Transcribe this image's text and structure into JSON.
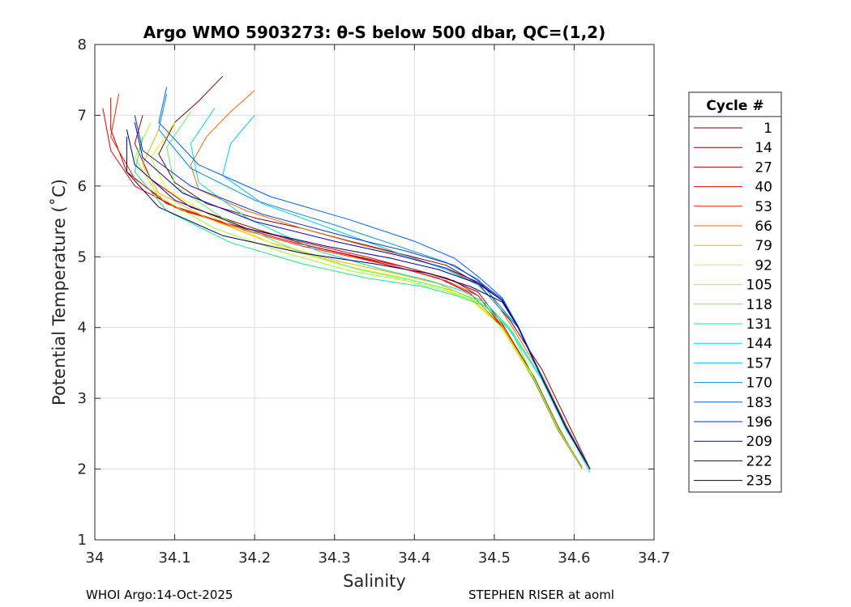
{
  "chart_data": {
    "type": "line",
    "title": "Argo WMO 5903273: θ-S below 500 dbar,  QC=(1,2)",
    "xlabel": "Salinity",
    "ylabel": "Potential Temperature (˚C)",
    "xlim": [
      34,
      34.7
    ],
    "ylim": [
      1,
      8
    ],
    "xticks": [
      34,
      34.1,
      34.2,
      34.3,
      34.4,
      34.5,
      34.6,
      34.7
    ],
    "xtick_labels": [
      "34",
      "34.1",
      "34.2",
      "34.3",
      "34.4",
      "34.5",
      "34.6",
      "34.7"
    ],
    "yticks": [
      1,
      2,
      3,
      4,
      5,
      6,
      7,
      8
    ],
    "ytick_labels": [
      "1",
      "2",
      "3",
      "4",
      "5",
      "6",
      "7",
      "8"
    ],
    "grid": true,
    "legend": {
      "title": "Cycle #",
      "position": "right",
      "entries": [
        {
          "label": "1",
          "color": "#800000"
        },
        {
          "label": "14",
          "color": "#a00000"
        },
        {
          "label": "27",
          "color": "#c80000"
        },
        {
          "label": "40",
          "color": "#e60000"
        },
        {
          "label": "53",
          "color": "#ff2200"
        },
        {
          "label": "66",
          "color": "#ff6600"
        },
        {
          "label": "79",
          "color": "#ffb000"
        },
        {
          "label": "92",
          "color": "#f0f000"
        },
        {
          "label": "105",
          "color": "#a0ff20"
        },
        {
          "label": "118",
          "color": "#50ff50"
        },
        {
          "label": "131",
          "color": "#10f080"
        },
        {
          "label": "144",
          "color": "#00e0c0"
        },
        {
          "label": "157",
          "color": "#00c8ff"
        },
        {
          "label": "170",
          "color": "#0090e0"
        },
        {
          "label": "183",
          "color": "#0060ff"
        },
        {
          "label": "196",
          "color": "#0030d0"
        },
        {
          "label": "209",
          "color": "#0000c0"
        },
        {
          "label": "222",
          "color": "#000090"
        },
        {
          "label": "235",
          "color": "#000060"
        }
      ]
    },
    "series": [
      {
        "name": "1",
        "color": "#800000",
        "x": [
          34.16,
          34.13,
          34.1,
          34.08,
          34.1,
          34.14,
          34.2,
          34.26,
          34.32,
          34.38,
          34.44,
          34.48,
          34.52,
          34.56,
          34.59,
          34.62
        ],
        "y": [
          7.55,
          7.2,
          6.9,
          6.45,
          6.05,
          5.75,
          5.55,
          5.4,
          5.22,
          5.05,
          4.88,
          4.62,
          4.1,
          3.4,
          2.7,
          2.0
        ]
      },
      {
        "name": "14",
        "color": "#a00000",
        "x": [
          34.06,
          34.05,
          34.07,
          34.12,
          34.2,
          34.27,
          34.33,
          34.39,
          34.44,
          34.48,
          34.51,
          34.55,
          34.58,
          34.61
        ],
        "y": [
          7.0,
          6.6,
          6.1,
          5.7,
          5.4,
          5.15,
          5.0,
          4.85,
          4.7,
          4.5,
          4.05,
          3.3,
          2.6,
          2.0
        ]
      },
      {
        "name": "27",
        "color": "#c80000",
        "x": [
          34.02,
          34.02,
          34.04,
          34.09,
          34.17,
          34.25,
          34.32,
          34.38,
          34.43,
          34.47,
          34.51,
          34.55,
          34.58,
          34.61
        ],
        "y": [
          7.25,
          6.8,
          6.2,
          5.75,
          5.45,
          5.2,
          5.02,
          4.85,
          4.7,
          4.48,
          4.0,
          3.25,
          2.55,
          2.0
        ]
      },
      {
        "name": "40",
        "color": "#e60000",
        "x": [
          34.01,
          34.02,
          34.05,
          34.11,
          34.19,
          34.27,
          34.34,
          34.4,
          34.45,
          34.48,
          34.51,
          34.55,
          34.58,
          34.61
        ],
        "y": [
          7.1,
          6.5,
          6.0,
          5.65,
          5.4,
          5.18,
          5.0,
          4.82,
          4.66,
          4.45,
          4.0,
          3.25,
          2.55,
          2.0
        ]
      },
      {
        "name": "53",
        "color": "#ff2200",
        "x": [
          34.03,
          34.02,
          34.05,
          34.1,
          34.18,
          34.26,
          34.33,
          34.39,
          34.44,
          34.48,
          34.51,
          34.55,
          34.58,
          34.61
        ],
        "y": [
          7.3,
          6.7,
          6.1,
          5.7,
          5.4,
          5.15,
          4.98,
          4.82,
          4.66,
          4.45,
          4.02,
          3.28,
          2.58,
          2.02
        ]
      },
      {
        "name": "66",
        "color": "#ff6600",
        "x": [
          34.2,
          34.17,
          34.14,
          34.12,
          34.13,
          34.19,
          34.26,
          34.33,
          34.4,
          34.45,
          34.49,
          34.52,
          34.56,
          34.59,
          34.62
        ],
        "y": [
          7.35,
          7.05,
          6.7,
          6.3,
          5.95,
          5.65,
          5.4,
          5.18,
          4.98,
          4.78,
          4.55,
          4.05,
          3.32,
          2.62,
          2.0
        ]
      },
      {
        "name": "79",
        "color": "#ffb000",
        "x": [
          34.08,
          34.06,
          34.08,
          34.14,
          34.22,
          34.3,
          34.37,
          34.43,
          34.47,
          34.51,
          34.55,
          34.58,
          34.61
        ],
        "y": [
          6.8,
          6.3,
          5.9,
          5.55,
          5.2,
          4.95,
          4.78,
          4.62,
          4.42,
          4.0,
          3.28,
          2.58,
          2.0
        ]
      },
      {
        "name": "92",
        "color": "#f0f000",
        "x": [
          34.1,
          34.07,
          34.09,
          34.15,
          34.23,
          34.31,
          34.38,
          34.43,
          34.47,
          34.51,
          34.55,
          34.58,
          34.61
        ],
        "y": [
          6.9,
          6.4,
          5.95,
          5.55,
          5.15,
          4.88,
          4.72,
          4.58,
          4.4,
          4.0,
          3.28,
          2.58,
          2.0
        ]
      },
      {
        "name": "105",
        "color": "#a0ff20",
        "x": [
          34.07,
          34.05,
          34.08,
          34.15,
          34.24,
          34.32,
          34.39,
          34.44,
          34.48,
          34.51,
          34.55,
          34.58,
          34.61
        ],
        "y": [
          6.9,
          6.4,
          5.85,
          5.4,
          5.05,
          4.8,
          4.66,
          4.52,
          4.36,
          3.98,
          3.26,
          2.56,
          2.0
        ]
      },
      {
        "name": "118",
        "color": "#50ff50",
        "x": [
          34.12,
          34.09,
          34.1,
          34.16,
          34.25,
          34.33,
          34.4,
          34.45,
          34.48,
          34.52,
          34.55,
          34.58,
          34.61
        ],
        "y": [
          7.05,
          6.55,
          6.0,
          5.55,
          5.1,
          4.82,
          4.66,
          4.52,
          4.38,
          3.98,
          3.28,
          2.58,
          2.0
        ]
      },
      {
        "name": "131",
        "color": "#10f080",
        "x": [
          34.06,
          34.05,
          34.09,
          34.17,
          34.26,
          34.34,
          34.41,
          34.45,
          34.49,
          34.52,
          34.56,
          34.59,
          34.62
        ],
        "y": [
          6.7,
          6.2,
          5.65,
          5.2,
          4.9,
          4.7,
          4.58,
          4.46,
          4.3,
          3.95,
          3.25,
          2.55,
          2.0
        ]
      },
      {
        "name": "144",
        "color": "#00e0c0",
        "x": [
          34.15,
          34.12,
          34.13,
          34.19,
          34.28,
          34.36,
          34.42,
          34.46,
          34.49,
          34.52,
          34.56,
          34.59,
          34.62
        ],
        "y": [
          7.1,
          6.6,
          6.05,
          5.55,
          5.08,
          4.82,
          4.66,
          4.52,
          4.34,
          3.98,
          3.28,
          2.58,
          1.95
        ]
      },
      {
        "name": "157",
        "color": "#00c8ff",
        "x": [
          34.2,
          34.17,
          34.16,
          34.21,
          34.3,
          34.38,
          34.44,
          34.48,
          34.5,
          34.53,
          34.56,
          34.59,
          34.62
        ],
        "y": [
          7.0,
          6.6,
          6.15,
          5.75,
          5.38,
          5.05,
          4.82,
          4.6,
          4.36,
          4.0,
          3.28,
          2.58,
          2.0
        ]
      },
      {
        "name": "170",
        "color": "#0090e0",
        "x": [
          34.09,
          34.08,
          34.12,
          34.2,
          34.3,
          34.38,
          34.44,
          34.48,
          34.5,
          34.53,
          34.56,
          34.59,
          34.62
        ],
        "y": [
          7.3,
          6.8,
          6.25,
          5.8,
          5.45,
          5.15,
          4.92,
          4.68,
          4.4,
          4.0,
          3.28,
          2.58,
          2.0
        ]
      },
      {
        "name": "183",
        "color": "#0060ff",
        "x": [
          34.09,
          34.08,
          34.13,
          34.22,
          34.32,
          34.4,
          34.45,
          34.48,
          34.51,
          34.53,
          34.56,
          34.59,
          34.62
        ],
        "y": [
          7.4,
          6.9,
          6.3,
          5.85,
          5.52,
          5.22,
          4.98,
          4.72,
          4.42,
          4.02,
          3.3,
          2.6,
          2.0
        ]
      },
      {
        "name": "196",
        "color": "#0030d0",
        "x": [
          34.05,
          34.06,
          34.12,
          34.21,
          34.31,
          34.39,
          34.45,
          34.48,
          34.51,
          34.53,
          34.56,
          34.59,
          34.62
        ],
        "y": [
          7.0,
          6.5,
          6.0,
          5.6,
          5.3,
          5.08,
          4.88,
          4.66,
          4.4,
          4.0,
          3.28,
          2.58,
          2.0
        ]
      },
      {
        "name": "209",
        "color": "#0000c0",
        "x": [
          34.05,
          34.06,
          34.11,
          34.2,
          34.3,
          34.38,
          34.44,
          34.48,
          34.51,
          34.53,
          34.56,
          34.59,
          34.62
        ],
        "y": [
          6.9,
          6.4,
          5.9,
          5.5,
          5.22,
          5.02,
          4.84,
          4.64,
          4.38,
          4.0,
          3.28,
          2.58,
          2.0
        ]
      },
      {
        "name": "222",
        "color": "#000090",
        "x": [
          34.04,
          34.05,
          34.1,
          34.19,
          34.29,
          34.37,
          34.43,
          34.48,
          34.51,
          34.53,
          34.56,
          34.59,
          34.62
        ],
        "y": [
          6.8,
          6.3,
          5.8,
          5.4,
          5.15,
          4.98,
          4.82,
          4.62,
          4.38,
          4.0,
          3.28,
          2.58,
          2.0
        ]
      },
      {
        "name": "235",
        "color": "#000060",
        "x": [
          34.04,
          34.04,
          34.08,
          34.16,
          34.26,
          34.35,
          34.42,
          34.47,
          34.51,
          34.53,
          34.56,
          34.59,
          34.62
        ],
        "y": [
          6.7,
          6.2,
          5.7,
          5.3,
          5.05,
          4.9,
          4.76,
          4.58,
          4.36,
          4.0,
          3.28,
          2.58,
          2.0
        ]
      }
    ]
  },
  "footer": {
    "left": "WHOI Argo:14-Oct-2025",
    "right": "STEPHEN RISER at aoml"
  }
}
